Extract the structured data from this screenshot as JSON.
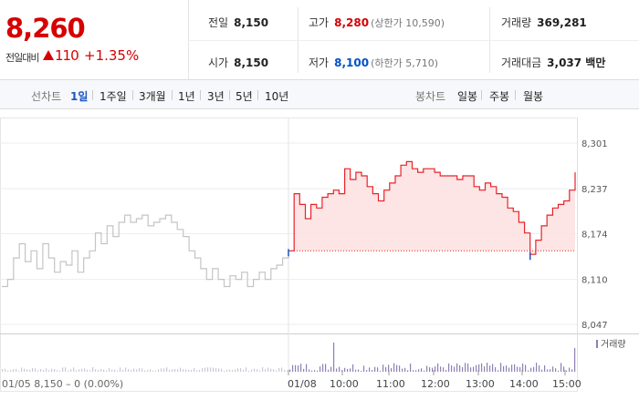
{
  "summary": {
    "price": "8,260",
    "change_label": "전일대비",
    "change_value": "110",
    "change_pct": "+1.35%"
  },
  "stats": {
    "prev_close": {
      "label": "전일",
      "value": "8,150"
    },
    "open": {
      "label": "시가",
      "value": "8,150"
    },
    "high": {
      "label": "고가",
      "value": "8,280",
      "sub": "(상한가 10,590)"
    },
    "low": {
      "label": "저가",
      "value": "8,100",
      "sub": "(하한가 5,710)"
    },
    "volume": {
      "label": "거래량",
      "value": "369,281"
    },
    "amount": {
      "label": "거래대금",
      "value": "3,037 백만"
    }
  },
  "line_tabs": {
    "label": "선차트",
    "items": [
      "1일",
      "1주일",
      "3개월",
      "1년",
      "3년",
      "5년",
      "10년"
    ],
    "active": "1일"
  },
  "candle_tabs": {
    "label": "봉차트",
    "items": [
      "일봉",
      "주봉",
      "월봉"
    ]
  },
  "colors": {
    "up": "#e8232a",
    "down": "#1a55c2",
    "prev_day": "#c4c4c4",
    "fill": "#fde1e1"
  },
  "chart_data": {
    "type": "line",
    "y_ticks": [
      "8,301",
      "8,237",
      "8,174",
      "8,110",
      "8,047"
    ],
    "y_tick_values": [
      8301,
      8237,
      8174,
      8110,
      8047
    ],
    "ylim": [
      8047,
      8301
    ],
    "baseline": 8150,
    "x_ticks": [
      "01/08",
      "10:00",
      "11:00",
      "12:00",
      "13:00",
      "14:00",
      "15:00"
    ],
    "volume_legend": "거래량",
    "prev_day_footer": "01/05  8,150 – 0 (0.00%)",
    "prev_day": {
      "name": "01/05",
      "values": [
        8100,
        8110,
        8140,
        8160,
        8135,
        8150,
        8125,
        8160,
        8140,
        8120,
        8135,
        8130,
        8150,
        8120,
        8140,
        8150,
        8175,
        8160,
        8185,
        8170,
        8190,
        8200,
        8190,
        8195,
        8200,
        8185,
        8190,
        8195,
        8200,
        8190,
        8180,
        8170,
        8150,
        8140,
        8125,
        8110,
        8125,
        8110,
        8100,
        8115,
        8110,
        8120,
        8100,
        8110,
        8120,
        8110,
        8125,
        8130,
        8140,
        8145
      ]
    },
    "today": {
      "name": "01/08",
      "values": [
        8150,
        8230,
        8215,
        8195,
        8215,
        8210,
        8225,
        8230,
        8235,
        8230,
        8265,
        8250,
        8260,
        8255,
        8240,
        8230,
        8220,
        8235,
        8245,
        8255,
        8270,
        8275,
        8265,
        8260,
        8265,
        8265,
        8260,
        8255,
        8255,
        8255,
        8250,
        8255,
        8255,
        8240,
        8235,
        8245,
        8240,
        8230,
        8225,
        8210,
        8205,
        8190,
        8175,
        8145,
        8165,
        8185,
        8200,
        8210,
        8215,
        8220,
        8235,
        8260
      ]
    }
  }
}
